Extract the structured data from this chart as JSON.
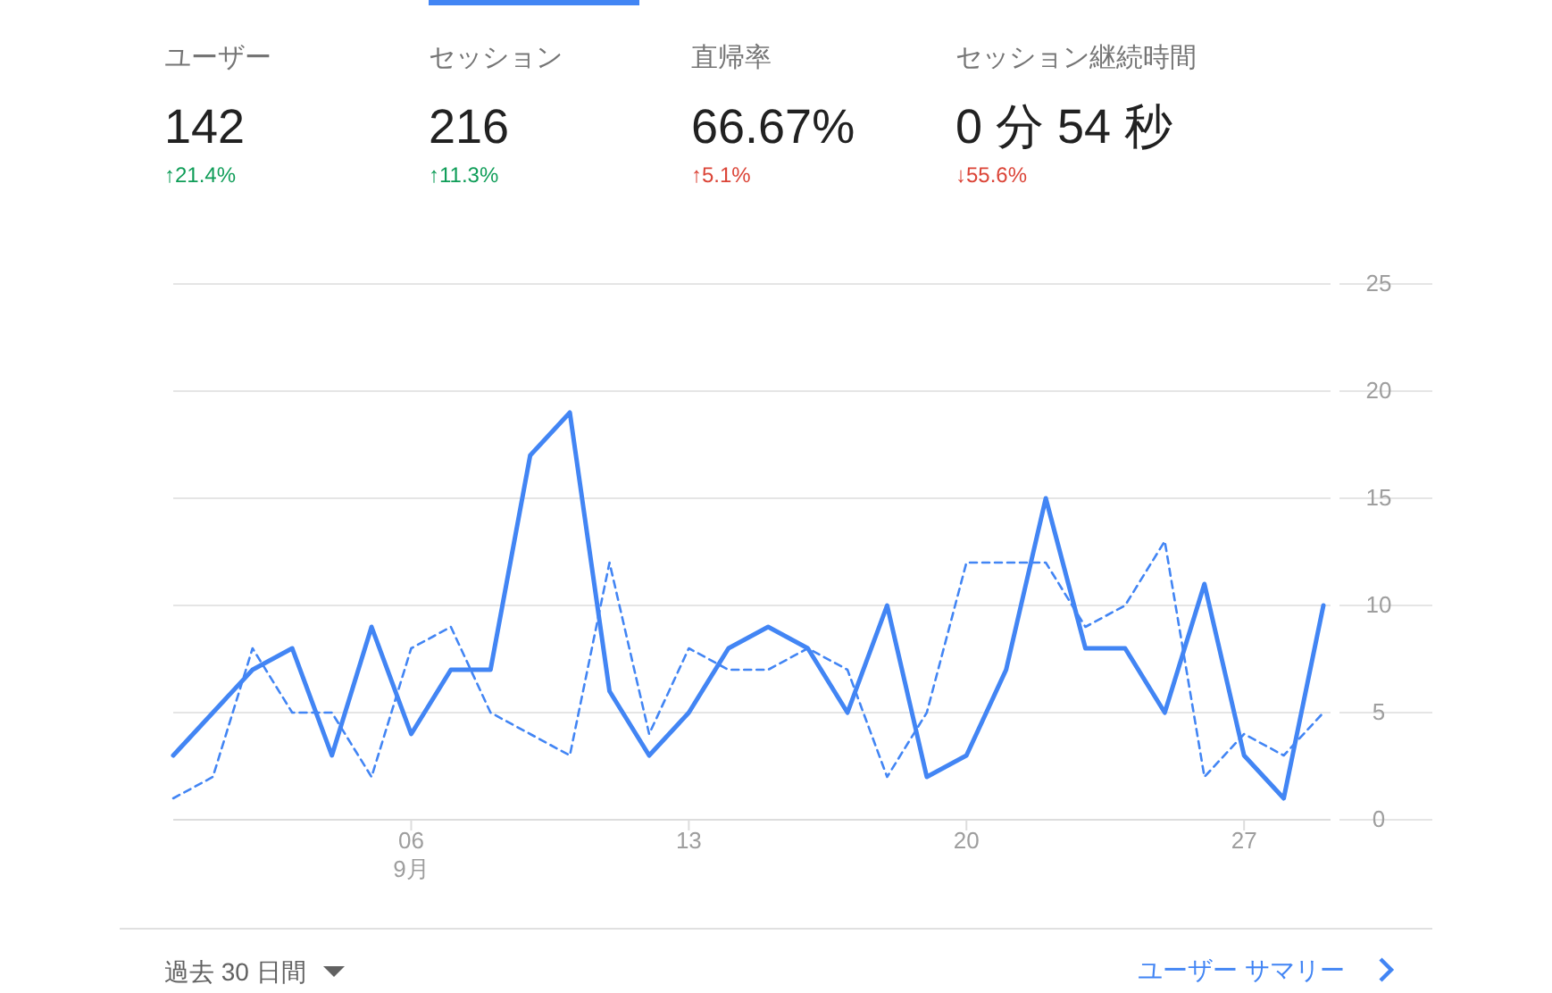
{
  "chart_data": [
    {
      "type": "other",
      "annotations": [
        "ユーザー",
        "142",
        "↑21.4%",
        "セッション",
        "216",
        "↑11.3%",
        "直帰率",
        "66.67%",
        "↑5.1%",
        "セッション継続時間",
        "0 分 54 秒",
        "↓55.6%"
      ],
      "colors": [
        "#0f9d58",
        "#0f9d58",
        "#db4437",
        "#db4437"
      ]
    },
    {
      "type": "line",
      "categories": [
        null,
        null,
        null,
        null,
        null,
        null,
        "06\n9月",
        null,
        null,
        null,
        null,
        null,
        null,
        "13",
        null,
        null,
        null,
        null,
        null,
        null,
        "20",
        null,
        null,
        null,
        null,
        null,
        null,
        "27",
        null,
        null
      ],
      "series": [
        {
          "color": "#4285f4",
          "line_style": "solid",
          "values": [
            3,
            5,
            7,
            8,
            3,
            9,
            4,
            7,
            7,
            17,
            19,
            6,
            3,
            5,
            8,
            9,
            8,
            5,
            10,
            2,
            3,
            7,
            15,
            8,
            8,
            5,
            11,
            3,
            1,
            10
          ]
        },
        {
          "color": "#4285f4",
          "line_style": "dashed",
          "values": [
            1,
            2,
            8,
            5,
            5,
            2,
            8,
            9,
            5,
            4,
            3,
            12,
            4,
            8,
            7,
            7,
            8,
            7,
            2,
            5,
            12,
            12,
            12,
            9,
            10,
            13,
            2,
            4,
            3,
            5
          ]
        }
      ],
      "ylim": [
        0,
        25
      ],
      "yticks": [
        0,
        5,
        10,
        15,
        20,
        25
      ],
      "grid": "y",
      "annotations": [
        "過去 30 日間",
        "ユーザー サマリー"
      ]
    }
  ]
}
